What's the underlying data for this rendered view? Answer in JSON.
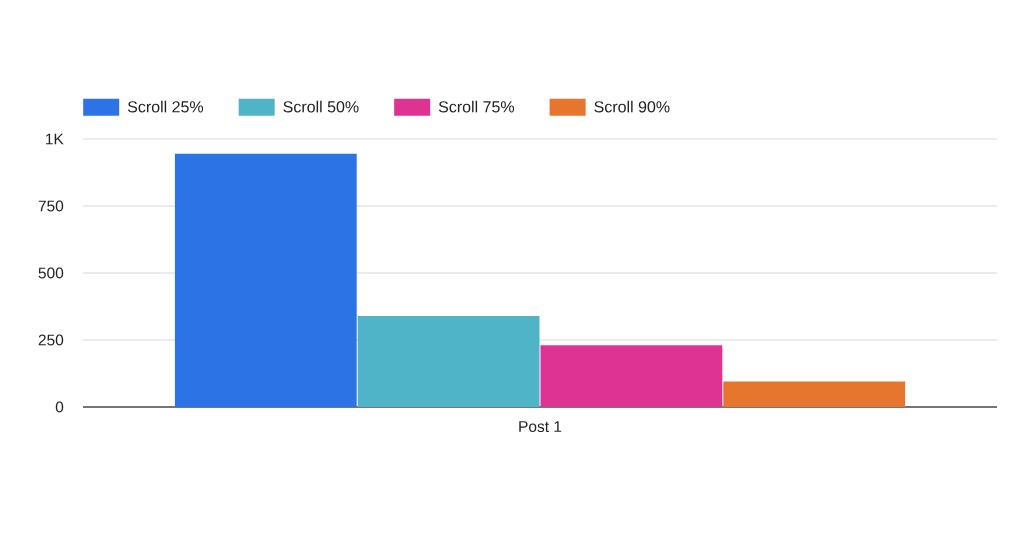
{
  "chart_data": {
    "type": "bar",
    "categories": [
      "Post 1"
    ],
    "series": [
      {
        "name": "Scroll 25%",
        "color": "#2c73e6",
        "values": [
          945
        ]
      },
      {
        "name": "Scroll 50%",
        "color": "#4fb4c8",
        "values": [
          340
        ]
      },
      {
        "name": "Scroll 75%",
        "color": "#df3393",
        "values": [
          230
        ]
      },
      {
        "name": "Scroll 90%",
        "color": "#e6762e",
        "values": [
          95
        ]
      }
    ],
    "ylim": [
      0,
      1000
    ],
    "yticks": [
      0,
      250,
      500,
      750,
      {
        "value": 1000,
        "label": "1K"
      }
    ],
    "grid": "y",
    "legend": "top left"
  }
}
